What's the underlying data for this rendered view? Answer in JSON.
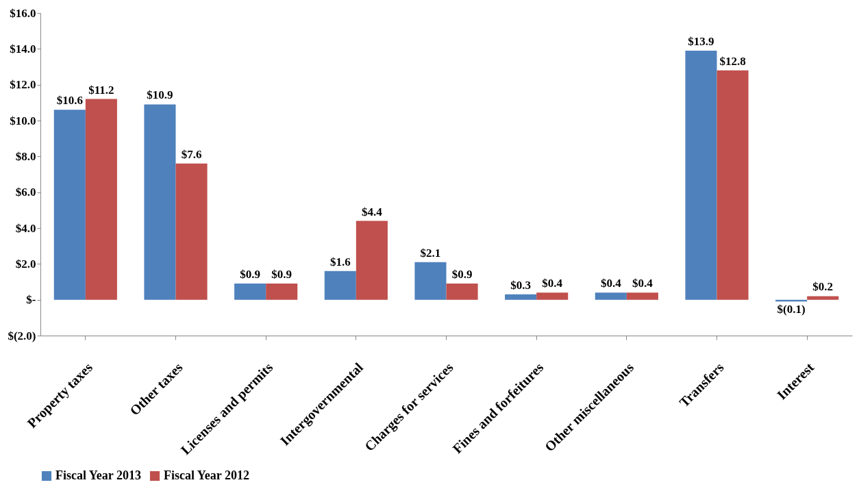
{
  "chart_data": {
    "type": "bar",
    "categories": [
      "Property taxes",
      "Other taxes",
      "Licenses and permits",
      "Intergovernmental",
      "Charges for services",
      "Fines and forfeitures",
      "Other miscellaneous",
      "Transfers",
      "Interest"
    ],
    "series": [
      {
        "name": "Fiscal Year 2013",
        "color": "#4f81bd",
        "values": [
          10.6,
          10.9,
          0.9,
          1.6,
          2.1,
          0.3,
          0.4,
          13.9,
          -0.1
        ],
        "value_labels": [
          "$10.6",
          "$10.9",
          "$0.9",
          "$1.6",
          "$2.1",
          "$0.3",
          "$0.4",
          "$13.9",
          "$(0.1)"
        ]
      },
      {
        "name": "Fiscal Year 2012",
        "color": "#c0504d",
        "values": [
          11.2,
          7.6,
          0.9,
          4.4,
          0.9,
          0.4,
          0.4,
          12.8,
          0.2
        ],
        "value_labels": [
          "$11.2",
          "$7.6",
          "$0.9",
          "$4.4",
          "$0.9",
          "$0.4",
          "$0.4",
          "$12.8",
          "$0.2"
        ]
      }
    ],
    "ylim": [
      -2,
      16
    ],
    "yticks": [
      {
        "value": -2,
        "label": "$(2.0)"
      },
      {
        "value": 0,
        "label": "$-"
      },
      {
        "value": 2,
        "label": "$2.0"
      },
      {
        "value": 4,
        "label": "$4.0"
      },
      {
        "value": 6,
        "label": "$6.0"
      },
      {
        "value": 8,
        "label": "$8.0"
      },
      {
        "value": 10,
        "label": "$10.0"
      },
      {
        "value": 12,
        "label": "$12.0"
      },
      {
        "value": 14,
        "label": "$14.0"
      },
      {
        "value": 16,
        "label": "$16.0"
      }
    ],
    "grid": false,
    "legend": "bottom"
  }
}
